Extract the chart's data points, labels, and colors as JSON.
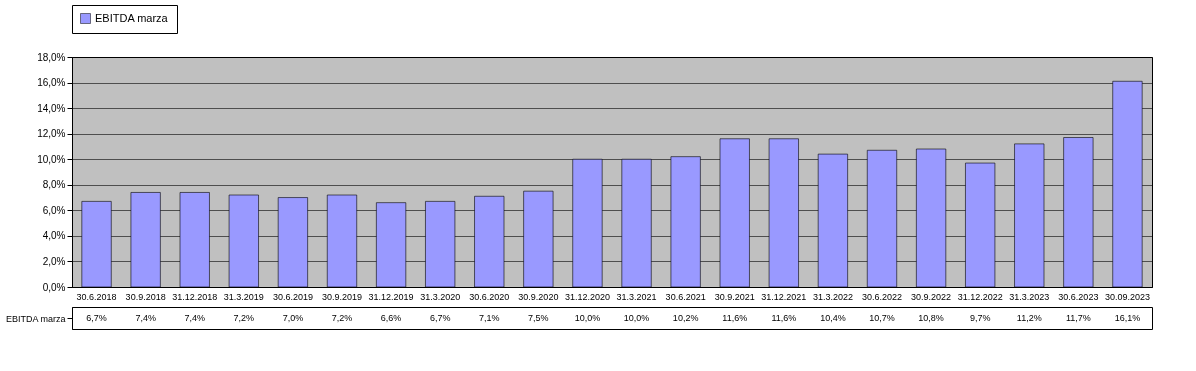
{
  "chart_data": {
    "type": "bar",
    "categories": [
      "30.6.2018",
      "30.9.2018",
      "31.12.2018",
      "31.3.2019",
      "30.6.2019",
      "30.9.2019",
      "31.12.2019",
      "31.3.2020",
      "30.6.2020",
      "30.9.2020",
      "31.12.2020",
      "31.3.2021",
      "30.6.2021",
      "30.9.2021",
      "31.12.2021",
      "31.3.2022",
      "30.6.2022",
      "30.9.2022",
      "31.12.2022",
      "31.3.2023",
      "30.6.2023",
      "30.09.2023"
    ],
    "series": [
      {
        "name": "EBITDA marza",
        "color": "#9999ff",
        "values": [
          6.7,
          7.4,
          7.4,
          7.2,
          7.0,
          7.2,
          6.6,
          6.7,
          7.1,
          7.5,
          10.0,
          10.0,
          10.2,
          11.6,
          11.6,
          10.4,
          10.7,
          10.8,
          9.7,
          11.2,
          11.7,
          16.1
        ],
        "value_labels": [
          "6,7%",
          "7,4%",
          "7,4%",
          "7,2%",
          "7,0%",
          "7,2%",
          "6,6%",
          "6,7%",
          "7,1%",
          "7,5%",
          "10,0%",
          "10,0%",
          "10,2%",
          "11,6%",
          "11,6%",
          "10,4%",
          "10,7%",
          "10,8%",
          "9,7%",
          "11,2%",
          "11,7%",
          "16,1%"
        ]
      }
    ],
    "ylim": [
      0,
      18
    ],
    "yticks": [
      {
        "value": 0,
        "label": "0,0%"
      },
      {
        "value": 2,
        "label": "2,0%"
      },
      {
        "value": 4,
        "label": "4,0%"
      },
      {
        "value": 6,
        "label": "6,0%"
      },
      {
        "value": 8,
        "label": "8,0%"
      },
      {
        "value": 10,
        "label": "10,0%"
      },
      {
        "value": 12,
        "label": "12,0%"
      },
      {
        "value": 14,
        "label": "14,0%"
      },
      {
        "value": 16,
        "label": "16,0%"
      },
      {
        "value": 18,
        "label": "18,0%"
      }
    ],
    "grid": "y",
    "legend": "top"
  }
}
